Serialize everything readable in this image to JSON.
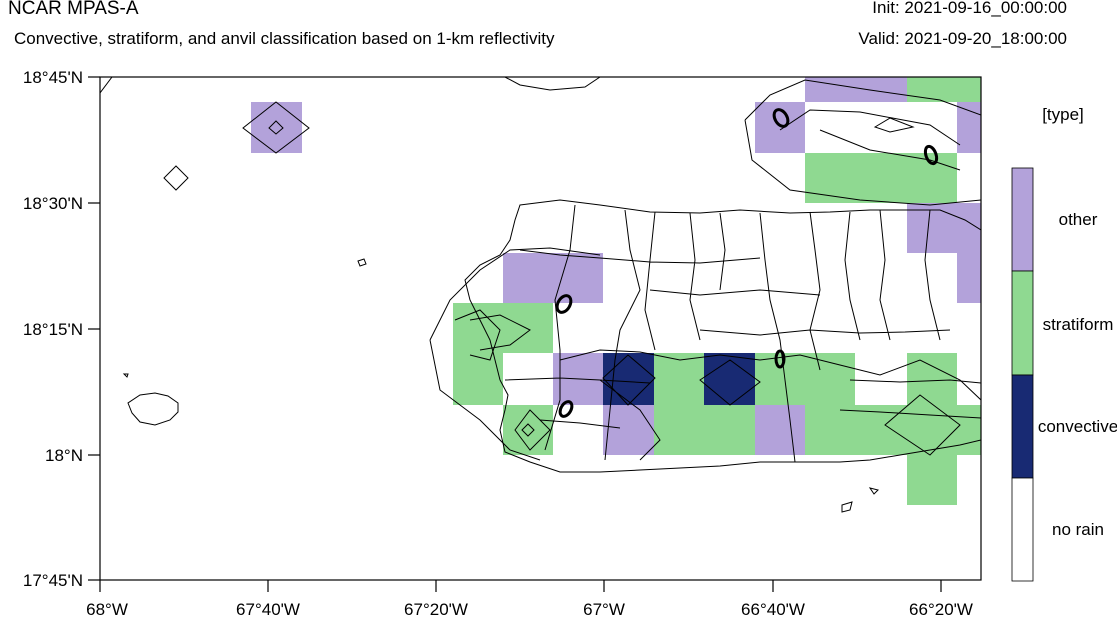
{
  "header": {
    "title": "NCAR MPAS-A",
    "subtitle": "Convective, stratiform, and anvil classification based on 1-km reflectivity",
    "init": "Init: 2021-09-16_00:00:00",
    "valid": "Valid: 2021-09-20_18:00:00"
  },
  "map": {
    "lon_range": [
      -68.0,
      -66.25
    ],
    "lat_range": [
      17.75,
      18.75
    ],
    "lon_ticks": [
      {
        "value": -68.0,
        "label": "68°W"
      },
      {
        "value": -67.6667,
        "label": "67°40'W"
      },
      {
        "value": -67.3333,
        "label": "67°20'W"
      },
      {
        "value": -67.0,
        "label": "67°W"
      },
      {
        "value": -66.6667,
        "label": "66°40'W"
      },
      {
        "value": -66.3333,
        "label": "66°20'W"
      }
    ],
    "lat_ticks": [
      {
        "value": 18.75,
        "label": "18°45'N"
      },
      {
        "value": 18.5,
        "label": "18°30'N"
      },
      {
        "value": 18.25,
        "label": "18°15'N"
      },
      {
        "value": 18.0,
        "label": "18°N"
      },
      {
        "value": 17.75,
        "label": "17°45'N"
      }
    ]
  },
  "legend": {
    "title": "[type]",
    "entries": [
      {
        "label": "other",
        "color": "#b3a2da"
      },
      {
        "label": "stratiform",
        "color": "#8fd991"
      },
      {
        "label": "convective",
        "color": "#182a73"
      },
      {
        "label": "no rain",
        "color": "#ffffff"
      }
    ]
  },
  "colors": {
    "other": "#b3a2da",
    "stratiform": "#8fd991",
    "convective": "#182a73"
  }
}
